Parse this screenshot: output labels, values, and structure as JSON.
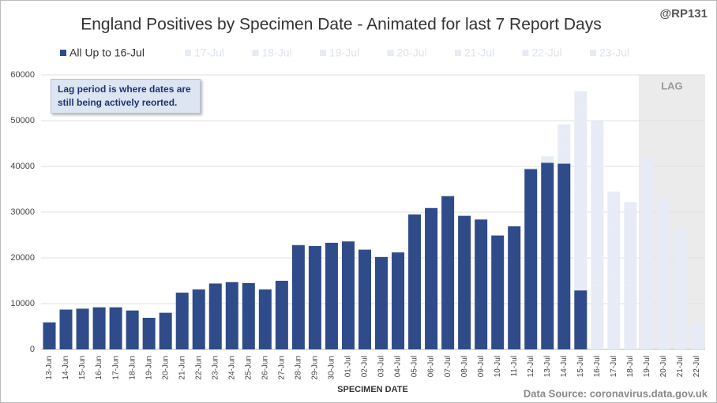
{
  "chart_data": {
    "type": "stacked_bar",
    "title": "England Positives by Specimen Date - Animated for last 7 Report Days",
    "credit": "@RP131",
    "annotation": "Lag period is where dates are still being actively reorted.",
    "xlabel": "SPECIMEN DATE",
    "source": "Data Source: coronavirus.data.gov.uk",
    "lag": {
      "label": "LAG",
      "start": "19-Jul"
    },
    "categories": [
      "13-Jun",
      "14-Jun",
      "15-Jun",
      "16-Jun",
      "17-Jun",
      "18-Jun",
      "19-Jun",
      "20-Jun",
      "21-Jun",
      "22-Jun",
      "23-Jun",
      "24-Jun",
      "25-Jun",
      "26-Jun",
      "27-Jun",
      "28-Jun",
      "29-Jun",
      "30-Jun",
      "01-Jul",
      "02-Jul",
      "03-Jul",
      "04-Jul",
      "05-Jul",
      "06-Jul",
      "07-Jul",
      "08-Jul",
      "09-Jul",
      "10-Jul",
      "11-Jul",
      "12-Jul",
      "13-Jul",
      "14-Jul",
      "15-Jul",
      "16-Jul",
      "17-Jul",
      "18-Jul",
      "19-Jul",
      "20-Jul",
      "21-Jul",
      "22-Jul"
    ],
    "series": [
      {
        "name": "All Up to 16-Jul",
        "color": "#2f4b8a",
        "values": [
          5900,
          8700,
          8900,
          9200,
          9200,
          8500,
          6900,
          8000,
          12400,
          13100,
          14400,
          14700,
          14500,
          13100,
          15000,
          22800,
          22600,
          23300,
          23600,
          21800,
          20200,
          21200,
          29500,
          30900,
          33500,
          29200,
          28400,
          24900,
          26900,
          39400,
          40800,
          40600,
          12900,
          null,
          null,
          null,
          null,
          null,
          null,
          null
        ]
      },
      {
        "name": "17-Jul",
        "color": "#e6ebf5",
        "values": [
          null,
          null,
          null,
          null,
          null,
          null,
          null,
          null,
          null,
          null,
          null,
          null,
          null,
          null,
          null,
          null,
          null,
          null,
          null,
          null,
          null,
          null,
          null,
          null,
          null,
          null,
          null,
          null,
          null,
          null,
          800,
          4000,
          22000,
          14000,
          null,
          null,
          null,
          null,
          null,
          null
        ]
      },
      {
        "name": "18-Jul",
        "color": "#e6ebf5",
        "values": [
          null,
          null,
          null,
          null,
          null,
          null,
          null,
          null,
          null,
          null,
          null,
          null,
          null,
          null,
          null,
          null,
          null,
          null,
          null,
          null,
          null,
          null,
          null,
          null,
          null,
          null,
          null,
          null,
          null,
          null,
          400,
          2000,
          10000,
          16000,
          16000,
          null,
          null,
          null,
          null,
          null
        ]
      },
      {
        "name": "19-Jul",
        "color": "#e6ebf5",
        "values": [
          null,
          null,
          null,
          null,
          null,
          null,
          null,
          null,
          null,
          null,
          null,
          null,
          null,
          null,
          null,
          null,
          null,
          null,
          null,
          null,
          null,
          null,
          null,
          null,
          null,
          null,
          null,
          null,
          null,
          null,
          200,
          1400,
          5000,
          10000,
          10000,
          14000,
          null,
          null,
          null,
          null
        ]
      },
      {
        "name": "20-Jul",
        "color": "#e6ebf5",
        "values": [
          null,
          null,
          null,
          null,
          null,
          null,
          null,
          null,
          null,
          null,
          null,
          null,
          null,
          null,
          null,
          null,
          null,
          null,
          null,
          null,
          null,
          null,
          null,
          null,
          null,
          null,
          null,
          null,
          null,
          null,
          null,
          800,
          3000,
          5000,
          5000,
          10000,
          22000,
          null,
          null,
          null
        ]
      },
      {
        "name": "21-Jul",
        "color": "#e6ebf5",
        "values": [
          null,
          null,
          null,
          null,
          null,
          null,
          null,
          null,
          null,
          null,
          null,
          null,
          null,
          null,
          null,
          null,
          null,
          null,
          null,
          null,
          null,
          null,
          null,
          null,
          null,
          null,
          200,
          null,
          null,
          200,
          null,
          400,
          2000,
          3000,
          2500,
          5000,
          12000,
          20000,
          null,
          null
        ]
      },
      {
        "name": "22-Jul",
        "color": "#e6ebf5",
        "values": [
          null,
          null,
          null,
          null,
          null,
          null,
          null,
          null,
          null,
          null,
          null,
          null,
          null,
          null,
          null,
          null,
          null,
          null,
          null,
          null,
          null,
          null,
          null,
          null,
          null,
          null,
          null,
          null,
          null,
          null,
          null,
          null,
          1000,
          1200,
          800,
          2000,
          5000,
          9000,
          18000,
          null
        ]
      },
      {
        "name": "23-Jul",
        "color": "#e6ebf5",
        "values": [
          null,
          null,
          null,
          null,
          null,
          null,
          null,
          null,
          null,
          null,
          null,
          null,
          null,
          null,
          null,
          null,
          null,
          null,
          null,
          null,
          null,
          null,
          null,
          null,
          null,
          null,
          null,
          null,
          null,
          null,
          null,
          null,
          500,
          800,
          200,
          1200,
          2900,
          4000,
          8300,
          5700
        ]
      }
    ],
    "ylim": [
      0,
      60000
    ],
    "yticks": [
      0,
      10000,
      20000,
      30000,
      40000,
      50000,
      60000
    ],
    "grid": true
  }
}
